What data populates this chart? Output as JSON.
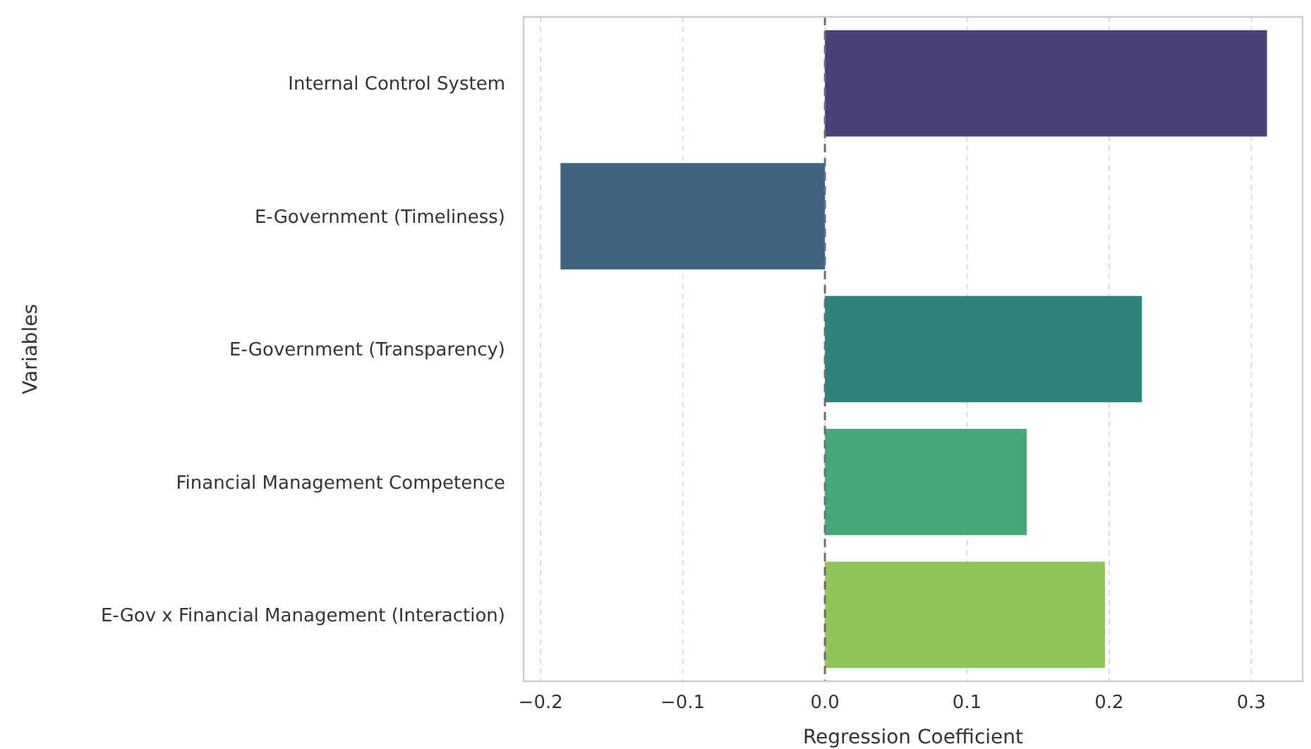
{
  "chart_data": {
    "type": "bar",
    "orientation": "horizontal",
    "xlabel": "Regression Coefficient",
    "ylabel": "Variables",
    "categories": [
      "Internal Control System",
      "E-Government (Timeliness)",
      "E-Government (Transparency)",
      "Financial Management Competence",
      "E-Gov x Financial Management (Interaction)"
    ],
    "values": [
      0.311,
      -0.186,
      0.223,
      0.142,
      0.197
    ],
    "colors": [
      "#4b4078",
      "#3e647f",
      "#2e837d",
      "#47a877",
      "#91c45a"
    ],
    "xlim": [
      -0.212,
      0.336
    ],
    "xticks": [
      {
        "value": -0.2,
        "label": "−0.2"
      },
      {
        "value": -0.1,
        "label": "−0.1"
      },
      {
        "value": 0,
        "label": "0.0"
      },
      {
        "value": 0.1,
        "label": "0.1"
      },
      {
        "value": 0.2,
        "label": "0.2"
      },
      {
        "value": 0.3,
        "label": "0.3"
      }
    ],
    "grid": "x",
    "ref_lines": [
      {
        "axis": "x",
        "value": 0,
        "color": "#6e6e6e",
        "line_style": "dashed"
      }
    ]
  }
}
